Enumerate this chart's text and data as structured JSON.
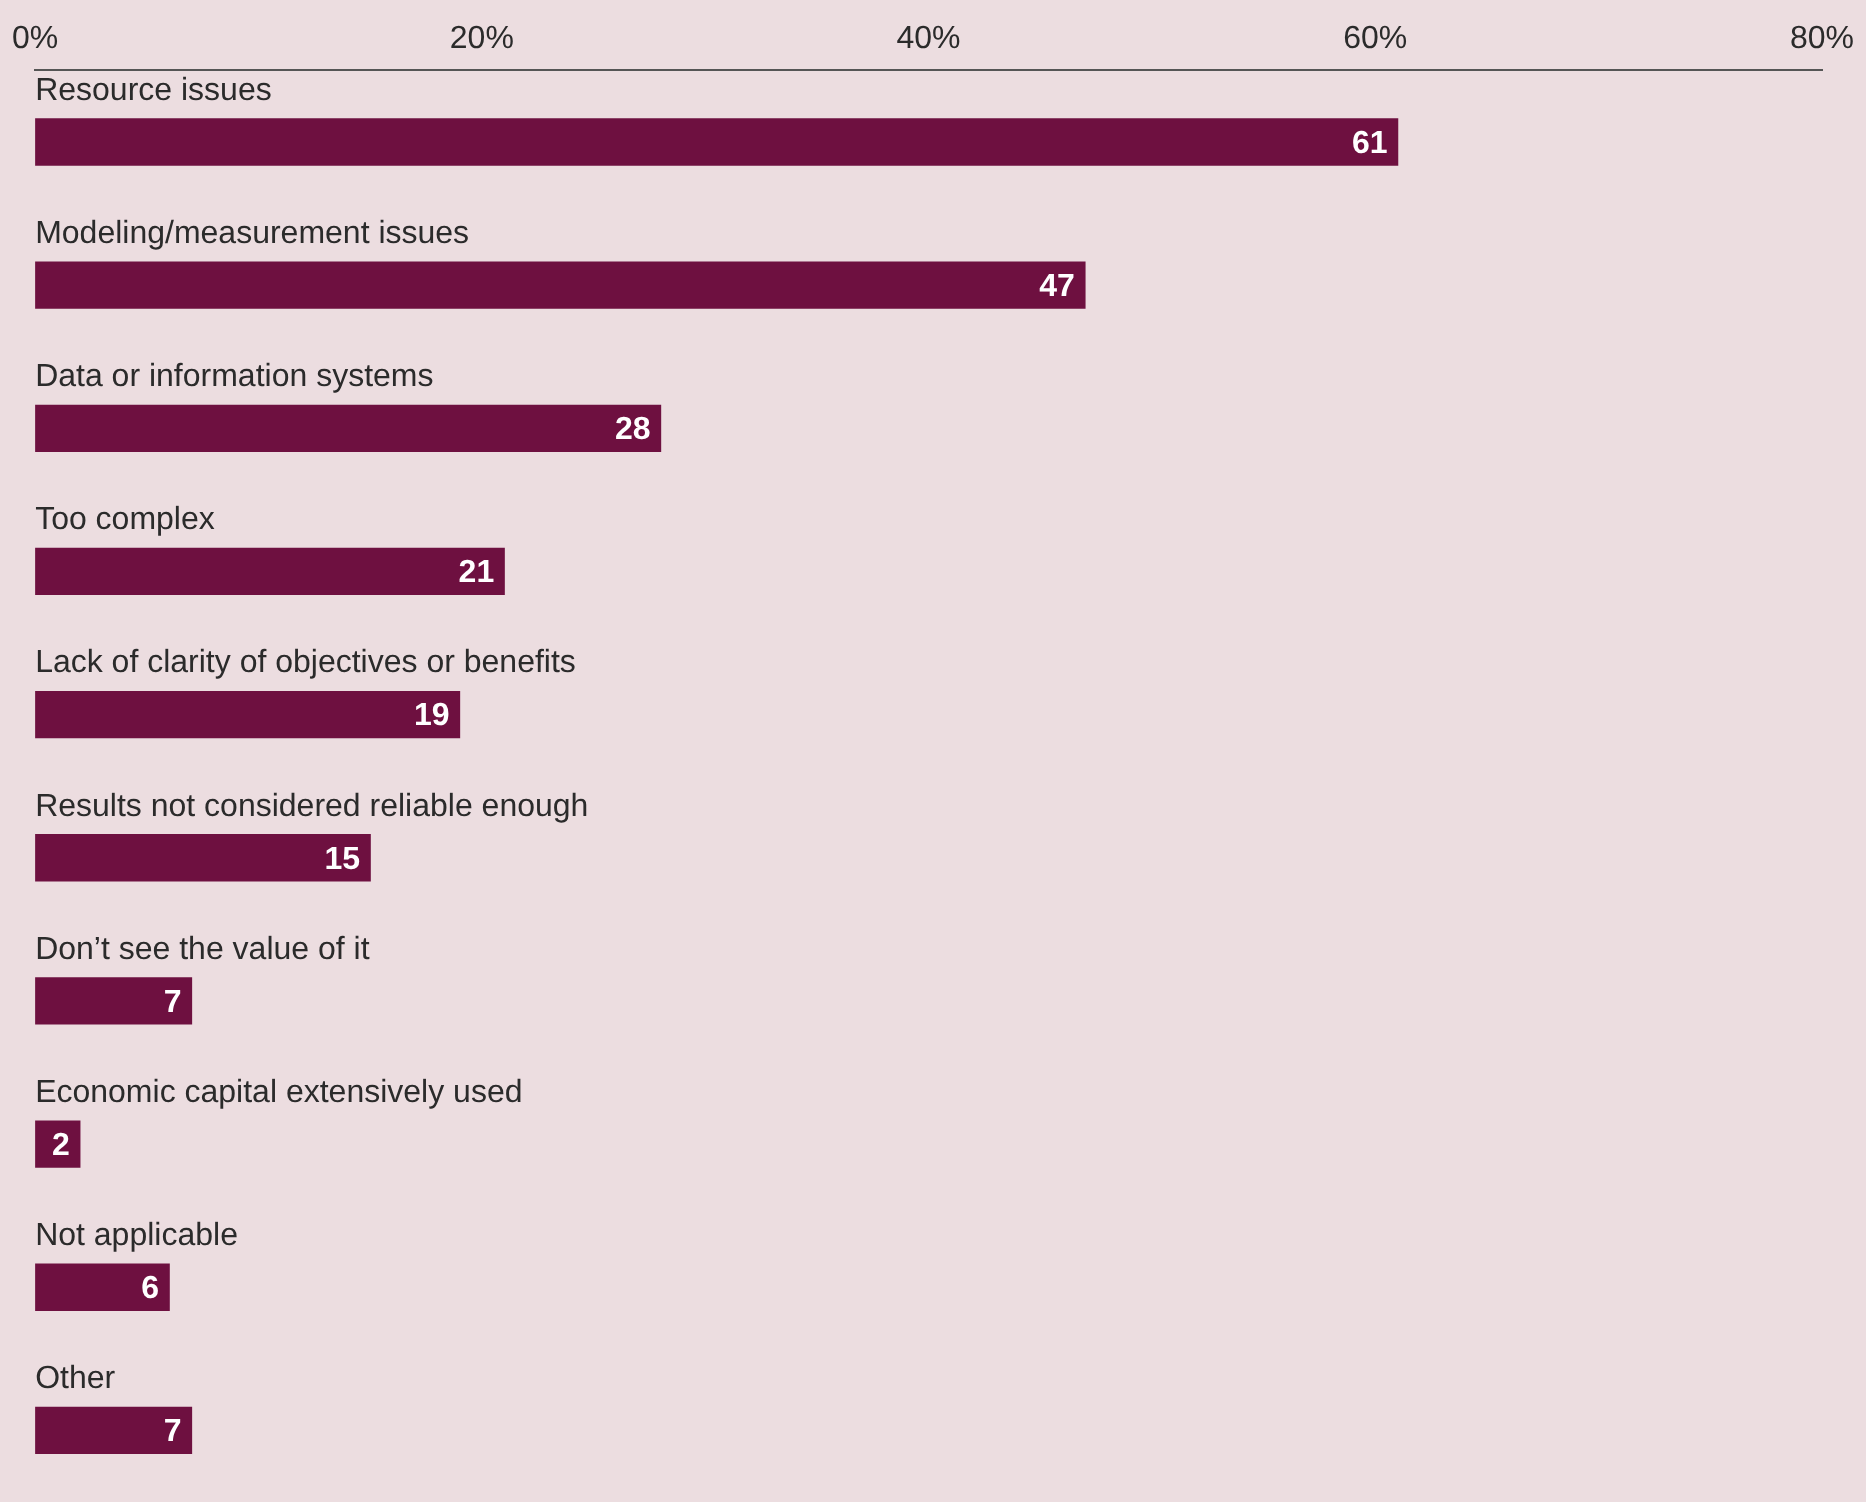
{
  "chart_data": {
    "type": "bar",
    "orientation": "horizontal",
    "categories": [
      "Resource issues",
      "Modeling/measurement issues",
      "Data or information systems",
      "Too complex",
      "Lack of clarity of objectives or benefits",
      "Results not considered reliable enough",
      "Don’t see the value of it",
      "Economic capital extensively used",
      "Not applicable",
      "Other"
    ],
    "values": [
      61,
      47,
      28,
      21,
      19,
      15,
      7,
      2,
      6,
      7
    ],
    "color": "#6e1040",
    "xlim": [
      0,
      80
    ],
    "xticks": [
      {
        "value": 0,
        "label": "0%"
      },
      {
        "value": 20,
        "label": "20%"
      },
      {
        "value": 40,
        "label": "40%"
      },
      {
        "value": 60,
        "label": "60%"
      },
      {
        "value": 80,
        "label": "80%"
      }
    ],
    "grid": false,
    "legend": false,
    "data_labels": true
  }
}
